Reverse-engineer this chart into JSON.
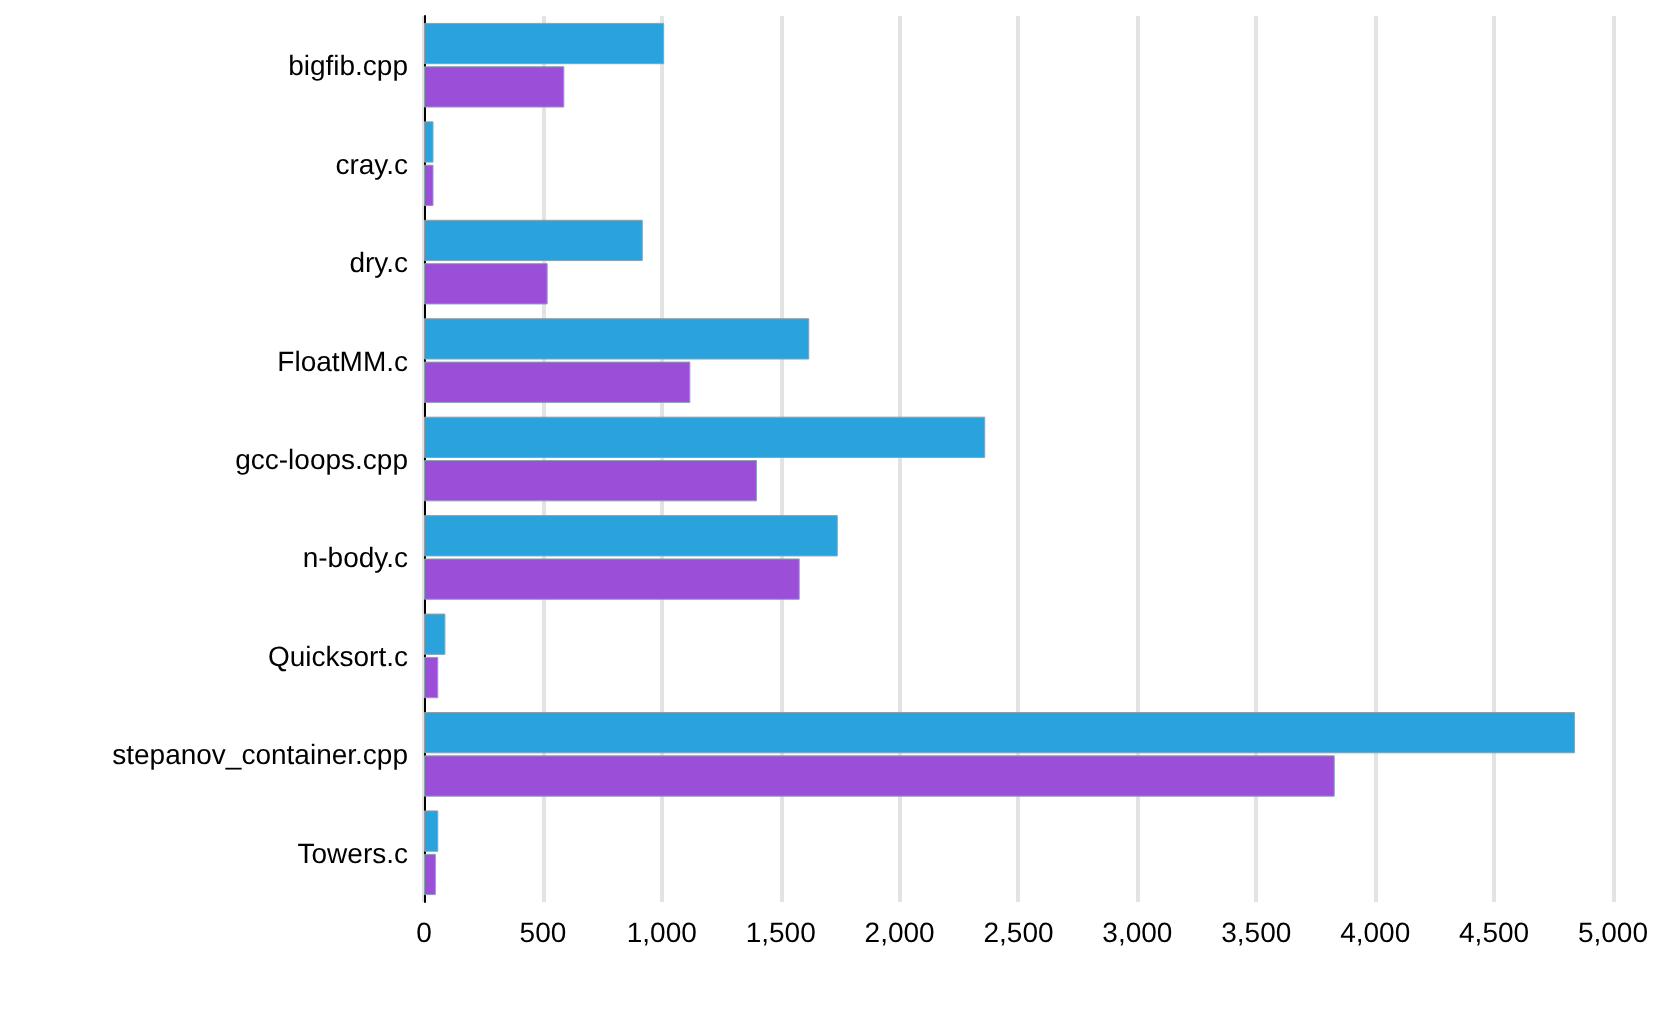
{
  "chart_data": {
    "type": "bar",
    "orientation": "horizontal",
    "categories": [
      "bigfib.cpp",
      "cray.c",
      "dry.c",
      "FloatMM.c",
      "gcc-loops.cpp",
      "n-body.c",
      "Quicksort.c",
      "stepanov_container.cpp",
      "Towers.c"
    ],
    "series": [
      {
        "color": "#2aa3dc",
        "values": [
          1010,
          40,
          920,
          1620,
          2360,
          1740,
          90,
          4840,
          60
        ]
      },
      {
        "color": "#9b4fd8",
        "values": [
          590,
          40,
          520,
          1120,
          1400,
          1580,
          60,
          3830,
          50
        ]
      }
    ],
    "xlim": [
      0,
      5000
    ],
    "xticks": [
      {
        "value": 0,
        "label": "0"
      },
      {
        "value": 500,
        "label": "500"
      },
      {
        "value": 1000,
        "label": "1,000"
      },
      {
        "value": 1500,
        "label": "1,500"
      },
      {
        "value": 2000,
        "label": "2,000"
      },
      {
        "value": 2500,
        "label": "2,500"
      },
      {
        "value": 3000,
        "label": "3,000"
      },
      {
        "value": 3500,
        "label": "3,500"
      },
      {
        "value": 4000,
        "label": "4,000"
      },
      {
        "value": 4500,
        "label": "4,500"
      },
      {
        "value": 5000,
        "label": "5,000"
      }
    ],
    "grid": "x"
  }
}
